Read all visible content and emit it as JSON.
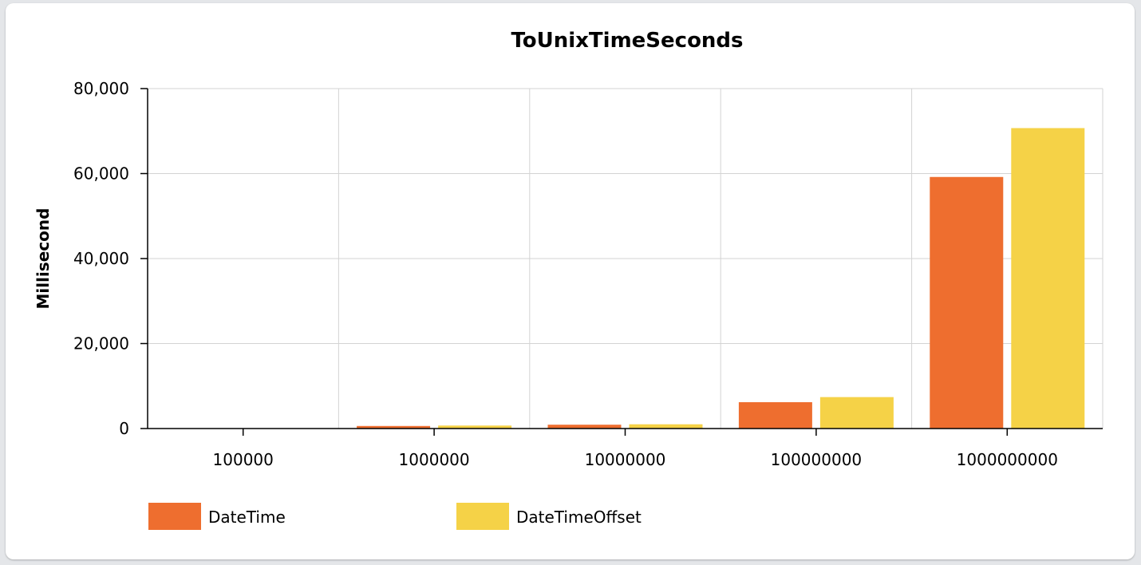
{
  "chart_data": {
    "type": "bar",
    "title": "ToUnixTimeSeconds",
    "xlabel": "",
    "ylabel": "Millisecond",
    "categories": [
      "100000",
      "1000000",
      "10000000",
      "100000000",
      "1000000000"
    ],
    "series": [
      {
        "name": "DateTime",
        "color": "#ee6e2f",
        "values": [
          60,
          600,
          900,
          6200,
          59200
        ]
      },
      {
        "name": "DateTimeOffset",
        "color": "#f5d247",
        "values": [
          70,
          700,
          1000,
          7400,
          70700
        ]
      }
    ],
    "ylim": [
      0,
      80000
    ],
    "yticks": [
      "0",
      "20,000",
      "40,000",
      "60,000",
      "80,000"
    ],
    "ytick_values": [
      0,
      20000,
      40000,
      60000,
      80000
    ],
    "grid": true,
    "legend_position": "bottom-left"
  }
}
